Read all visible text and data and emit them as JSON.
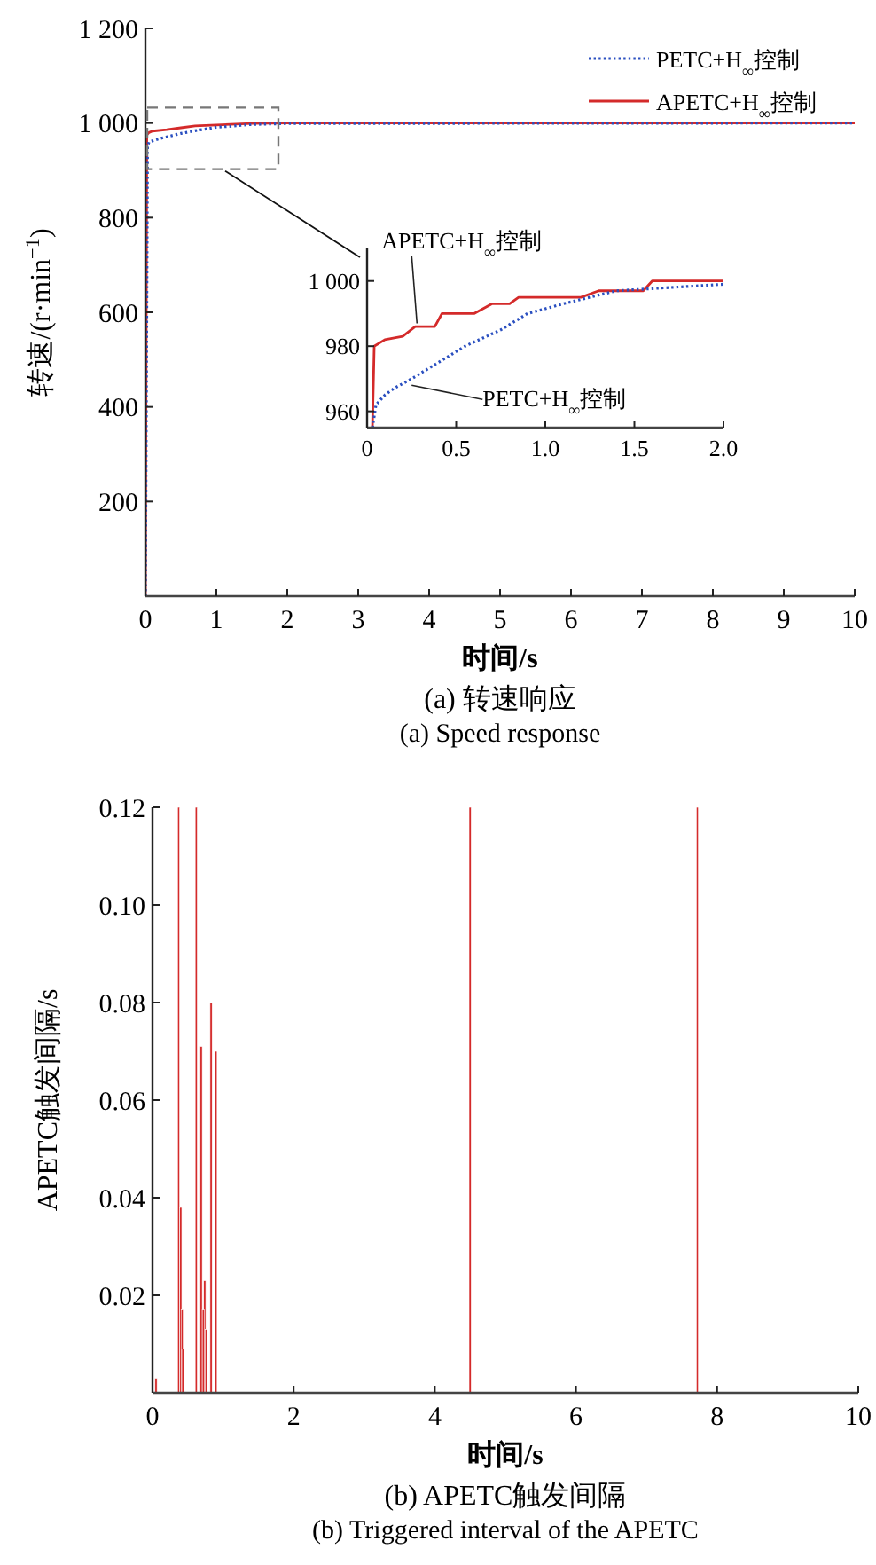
{
  "chart_data": [
    {
      "type": "line",
      "title": "(a) 转速响应",
      "subtitle": "(a) Speed response",
      "xlabel": "时间/s",
      "ylabel": "转速/(r·min$^{−1}$)",
      "xlim": [
        0,
        10
      ],
      "ylim": [
        0,
        1200
      ],
      "xticks": [
        0,
        1,
        2,
        3,
        4,
        5,
        6,
        7,
        8,
        9,
        10
      ],
      "yticks": [
        200,
        400,
        600,
        800,
        {
          "value": 1000,
          "label": "1 000"
        },
        {
          "value": 1200,
          "label": "1 200"
        }
      ],
      "legend": "top right",
      "series": [
        {
          "name": "PETC+H$_{∞}$控制",
          "color": "#2a4fc0",
          "line_style": "dotted",
          "x": [
            0,
            0.03,
            0.05,
            0.2,
            0.5,
            0.75,
            1.0,
            1.5,
            2,
            10
          ],
          "values": [
            0,
            950,
            960,
            967,
            978,
            985,
            991,
            997,
            999,
            1000
          ]
        },
        {
          "name": "APETC+H$_{∞}$控制",
          "color": "#d42a2a",
          "line_style": "solid",
          "x": [
            0,
            0.02,
            0.05,
            0.1,
            0.3,
            0.5,
            0.7,
            1.0,
            1.5,
            2,
            10
          ],
          "values": [
            0,
            975,
            980,
            983,
            986,
            990,
            994,
            996,
            999,
            1000,
            1000
          ]
        }
      ]
    },
    {
      "type": "line",
      "xlim": [
        0,
        2
      ],
      "ylim": [
        955,
        1010
      ],
      "xticks": [
        0,
        0.5,
        {
          "value": 1,
          "label": "1.0"
        },
        1.5,
        {
          "value": 2,
          "label": "2.0"
        }
      ],
      "yticks": [
        960,
        980,
        {
          "value": 1000,
          "label": "1 000"
        }
      ],
      "annotations": [
        {
          "text": "APETC+H$_{∞}$控制",
          "x": 0.28,
          "y": 987
        },
        {
          "text": "PETC+H$_{∞}$控制",
          "x": 0.25,
          "y": 968
        }
      ],
      "series": [
        {
          "color": "#2a4fc0",
          "line_style": "dotted",
          "x": [
            0.03,
            0.05,
            0.1,
            0.15,
            0.25,
            0.4,
            0.55,
            0.75,
            0.9,
            1.1,
            1.4,
            1.7,
            2.0
          ],
          "values": [
            955,
            962,
            965,
            967,
            970,
            975,
            980,
            985,
            990,
            993,
            997,
            998,
            999
          ]
        },
        {
          "color": "#d42a2a",
          "line_style": "solid",
          "x": [
            0.03,
            0.04,
            0.1,
            0.2,
            0.27,
            0.38,
            0.42,
            0.6,
            0.7,
            0.8,
            0.85,
            1.2,
            1.3,
            1.55,
            1.6,
            2.0
          ],
          "values": [
            955,
            980,
            982,
            983,
            986,
            986,
            990,
            990,
            993,
            993,
            995,
            995,
            997,
            997,
            1000,
            1000
          ]
        }
      ]
    },
    {
      "type": "bar",
      "title": "(b) APETC触发间隔",
      "subtitle": "(b) Triggered interval of the APETC",
      "xlabel": "时间/s",
      "ylabel": "APETC触发间隔/s",
      "xlim": [
        0,
        10
      ],
      "ylim": [
        0,
        0.12
      ],
      "xticks": [
        0,
        2,
        4,
        6,
        8,
        10
      ],
      "yticks": [
        {
          "value": 0.02,
          "label": "0.02"
        },
        {
          "value": 0.04,
          "label": "0.04"
        },
        {
          "value": 0.06,
          "label": "0.06"
        },
        {
          "value": 0.08,
          "label": "0.08"
        },
        {
          "value": 0.1,
          "label": "0.10"
        },
        {
          "value": 0.12,
          "label": "0.12"
        }
      ],
      "color": "#d42a2a",
      "x": [
        0.05,
        0.37,
        0.4,
        0.42,
        0.43,
        0.62,
        0.69,
        0.72,
        0.74,
        0.76,
        0.83,
        0.9,
        4.5,
        7.72
      ],
      "values": [
        0.003,
        0.12,
        0.038,
        0.017,
        0.009,
        0.12,
        0.071,
        0.017,
        0.023,
        0.013,
        0.08,
        0.07,
        0.12,
        0.12
      ]
    }
  ]
}
